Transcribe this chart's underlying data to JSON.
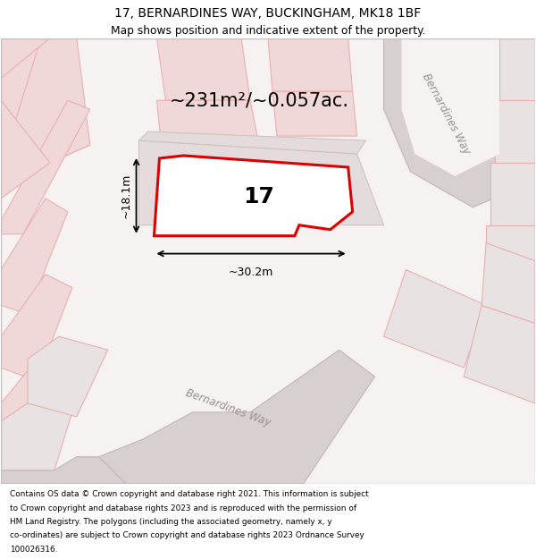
{
  "title_line1": "17, BERNARDINES WAY, BUCKINGHAM, MK18 1BF",
  "title_line2": "Map shows position and indicative extent of the property.",
  "area_text": "~231m²/~0.057ac.",
  "number_text": "17",
  "dim_width": "~30.2m",
  "dim_height": "~18.1m",
  "road_label_bottom": "Bernardines Way",
  "road_label_right": "Bernardines Way",
  "bg_color": "#ffffff",
  "map_bg": "#f7f2f2",
  "plot_outline_color": "#dd0000",
  "plot_fill": "#ffffff",
  "footer_lines": [
    "Contains OS data © Crown copyright and database right 2021. This information is subject",
    "to Crown copyright and database rights 2023 and is reproduced with the permission of",
    "HM Land Registry. The polygons (including the associated geometry, namely x, y",
    "co-ordinates) are subject to Crown copyright and database rights 2023 Ordnance Survey",
    "100026316."
  ],
  "pink": "#e8b0b0",
  "light_pink": "#f0d8d8",
  "gray_road": "#d8d0d0",
  "gray_block": "#d4cccc",
  "gray_light": "#e8e2e2",
  "road_outline": "#c0b8b8",
  "block_outline": "#c8b8b8"
}
